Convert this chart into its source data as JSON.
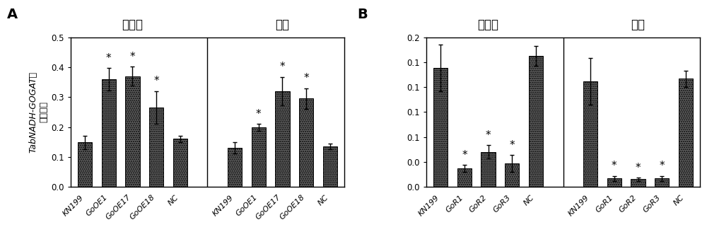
{
  "panel_A": {
    "title_left": "地上部",
    "title_right": "根系",
    "ylim": [
      0,
      0.5
    ],
    "yticks": [
      0.0,
      0.1,
      0.2,
      0.3,
      0.4,
      0.5
    ],
    "left_group": {
      "labels": [
        "KN199",
        "GoOE1",
        "GoOE17",
        "GoOE18",
        "NC"
      ],
      "values": [
        0.148,
        0.36,
        0.37,
        0.265,
        0.16
      ],
      "errors": [
        0.022,
        0.038,
        0.032,
        0.055,
        0.01
      ],
      "sig": [
        false,
        true,
        true,
        true,
        false
      ]
    },
    "right_group": {
      "labels": [
        "KN199",
        "GoOE1",
        "GoOE17",
        "GoOE18",
        "NC"
      ],
      "values": [
        0.13,
        0.198,
        0.32,
        0.295,
        0.135
      ],
      "errors": [
        0.018,
        0.012,
        0.048,
        0.035,
        0.01
      ],
      "sig": [
        false,
        true,
        true,
        true,
        false
      ]
    }
  },
  "panel_B": {
    "title_left": "地上部",
    "title_right": "根系",
    "ylim": [
      0,
      0.18
    ],
    "yticks": [
      0.0,
      0.03,
      0.06,
      0.09,
      0.12,
      0.15,
      0.18
    ],
    "left_group": {
      "labels": [
        "KN199",
        "GoR1",
        "GoR2",
        "GoR3",
        "NC"
      ],
      "values": [
        0.143,
        0.022,
        0.042,
        0.028,
        0.158
      ],
      "errors": [
        0.028,
        0.004,
        0.008,
        0.01,
        0.012
      ],
      "sig": [
        false,
        true,
        true,
        true,
        false
      ]
    },
    "right_group": {
      "labels": [
        "KN199",
        "GoR1",
        "GoR2",
        "GoR3",
        "NC"
      ],
      "values": [
        0.127,
        0.01,
        0.009,
        0.01,
        0.13
      ],
      "errors": [
        0.028,
        0.003,
        0.002,
        0.003,
        0.01
      ],
      "sig": [
        false,
        true,
        true,
        true,
        false
      ]
    }
  },
  "bar_color": "#636363",
  "bar_width": 0.6,
  "fig_width": 10.0,
  "fig_height": 3.52,
  "label_A": "A",
  "label_B": "B",
  "ylabel_italic": "TabNADH-GOGAT",
  "ylabel_normal": "相\n对表达量"
}
